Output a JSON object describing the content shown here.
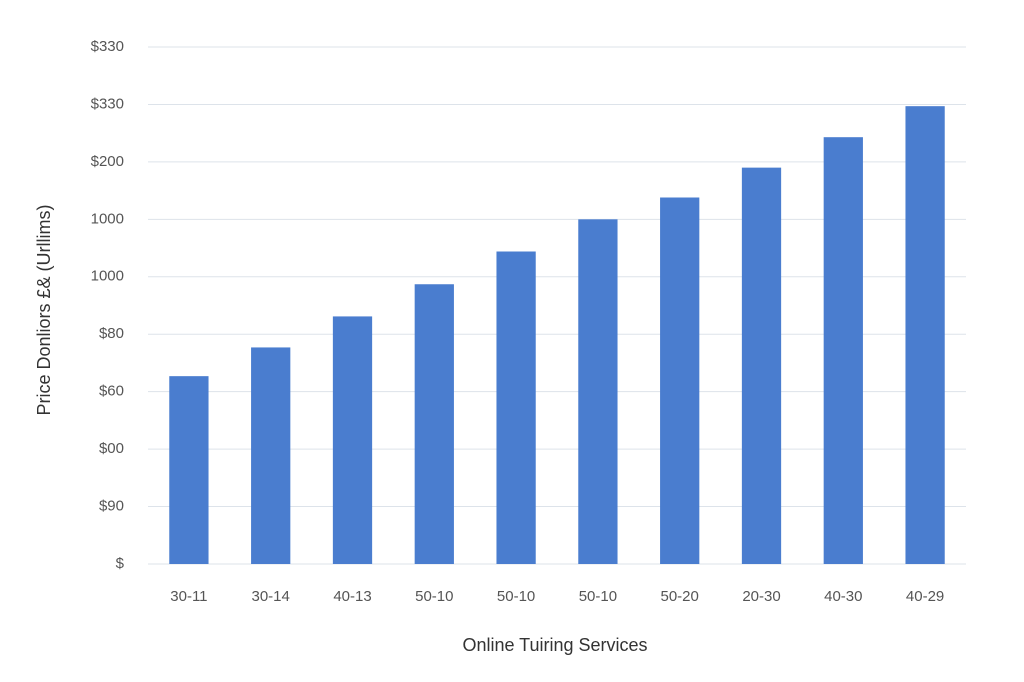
{
  "chart_data": {
    "type": "bar",
    "y_label": "Price Donliors £& (Urllims)",
    "x_label": "Online Tuiring Services",
    "categories": [
      "30-11",
      "30-14",
      "40-13",
      "50-10",
      "50-10",
      "50-10",
      "50-20",
      "20-30",
      "40-30",
      "40-29"
    ],
    "values": [
      3.27,
      3.77,
      4.31,
      4.87,
      5.44,
      6.0,
      6.38,
      6.9,
      7.43,
      7.97
    ],
    "color": "#4a7dcf",
    "ylim": [
      0,
      9
    ],
    "yticks": [
      {
        "value": 0,
        "label": "$"
      },
      {
        "value": 1,
        "label": "$90"
      },
      {
        "value": 2,
        "label": "$00"
      },
      {
        "value": 3,
        "label": "$60"
      },
      {
        "value": 4,
        "label": "$80"
      },
      {
        "value": 5,
        "label": "1000"
      },
      {
        "value": 6,
        "label": "1000"
      },
      {
        "value": 7,
        "label": "$200"
      },
      {
        "value": 8,
        "label": "$330"
      },
      {
        "value": 9,
        "label": "$330"
      }
    ],
    "grid": true
  }
}
